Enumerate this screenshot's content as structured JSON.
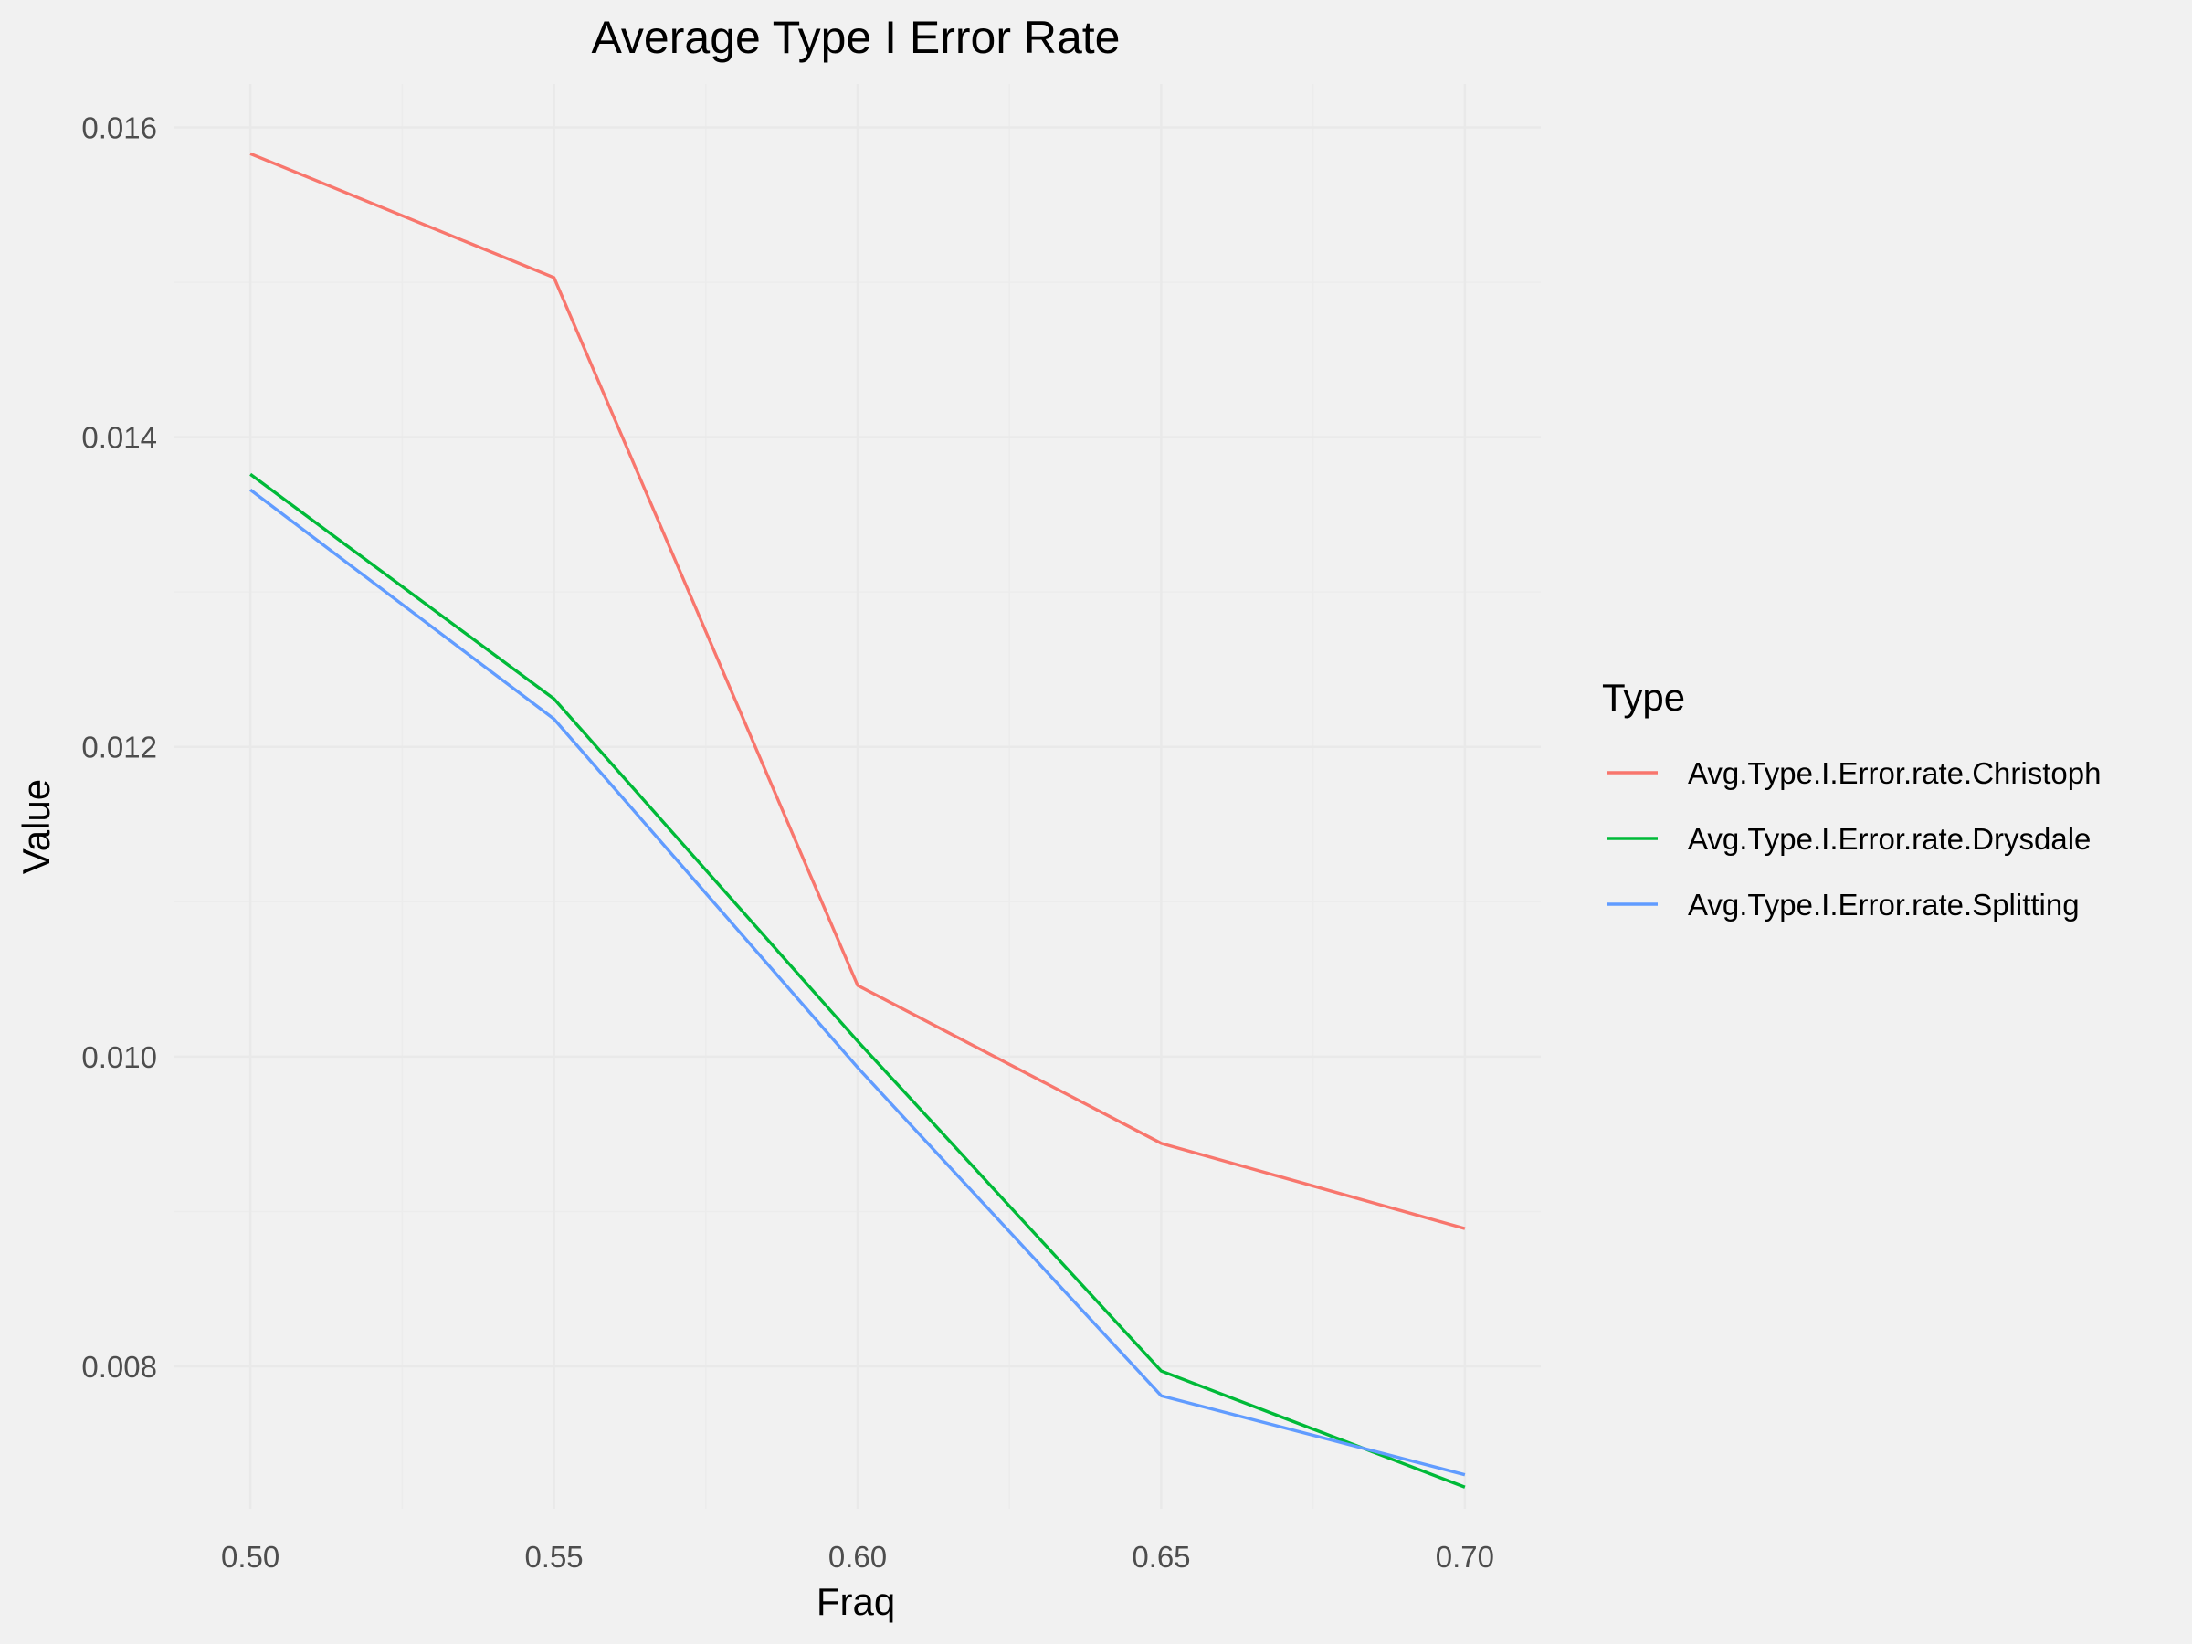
{
  "chart_data": {
    "type": "line",
    "title": "Average Type I Error Rate",
    "xlabel": "Fraq",
    "ylabel": "Value",
    "x": [
      0.5,
      0.55,
      0.6,
      0.65,
      0.7
    ],
    "x_tick_labels": [
      "0.50",
      "0.55",
      "0.60",
      "0.65",
      "0.70"
    ],
    "y_ticks": [
      0.008,
      0.01,
      0.012,
      0.014,
      0.016
    ],
    "y_tick_labels": [
      "0.008",
      "0.010",
      "0.012",
      "0.014",
      "0.016"
    ],
    "xlim": [
      0.4875,
      0.7125
    ],
    "ylim": [
      0.00708,
      0.01628
    ],
    "grid": true,
    "legend_title": "Type",
    "legend_position": "right",
    "series": [
      {
        "name": "Avg.Type.I.Error.rate.Christoph",
        "color": "#F8766D",
        "values": [
          0.01583,
          0.01503,
          0.01046,
          0.00944,
          0.00889
        ]
      },
      {
        "name": "Avg.Type.I.Error.rate.Drysdale",
        "color": "#00BA38",
        "values": [
          0.01376,
          0.01231,
          0.0101,
          0.00797,
          0.00722
        ]
      },
      {
        "name": "Avg.Type.I.Error.rate.Splitting",
        "color": "#619CFF",
        "values": [
          0.01366,
          0.01218,
          0.00993,
          0.00781,
          0.0073
        ]
      }
    ]
  }
}
